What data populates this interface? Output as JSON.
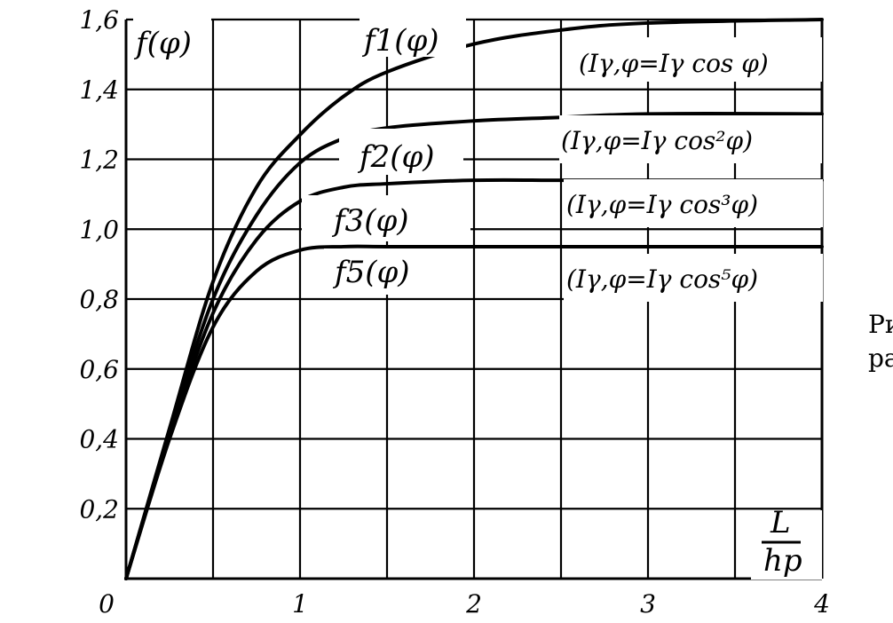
{
  "chart_data": {
    "type": "line",
    "xlabel": "L/h_p",
    "ylabel": "f(φ)",
    "xlim": [
      0,
      4
    ],
    "ylim": [
      0,
      1.6
    ],
    "grid": true,
    "x_ticks": [
      "0",
      "1",
      "2",
      "3",
      "4"
    ],
    "y_ticks": [
      "0,2",
      "0,4",
      "0,6",
      "0,8",
      "1,0",
      "1,2",
      "1,4",
      "1,6"
    ],
    "series": [
      {
        "name": "f1(φ)",
        "formula": "(Iγ,φ=Iγ cos φ)",
        "x": [
          0,
          0.25,
          0.5,
          0.75,
          1.0,
          1.25,
          1.5,
          2.0,
          2.5,
          3.0,
          4.0
        ],
        "values": [
          0,
          0.43,
          0.85,
          1.12,
          1.27,
          1.38,
          1.45,
          1.53,
          1.57,
          1.59,
          1.6
        ]
      },
      {
        "name": "f2(φ)",
        "formula": "(Iγ,φ=Iγ cos²φ)",
        "x": [
          0,
          0.25,
          0.5,
          0.75,
          1.0,
          1.25,
          1.5,
          2.0,
          2.5,
          3.0,
          4.0
        ],
        "values": [
          0,
          0.42,
          0.8,
          1.04,
          1.19,
          1.26,
          1.29,
          1.31,
          1.32,
          1.33,
          1.33
        ]
      },
      {
        "name": "f3(φ)",
        "formula": "(Iγ,φ=Iγ cos³φ)",
        "x": [
          0,
          0.25,
          0.5,
          0.75,
          1.0,
          1.25,
          1.5,
          2.0,
          2.5,
          3.0,
          4.0
        ],
        "values": [
          0,
          0.41,
          0.76,
          0.97,
          1.08,
          1.12,
          1.13,
          1.14,
          1.14,
          1.14,
          1.14
        ]
      },
      {
        "name": "f5(φ)",
        "formula": "(Iγ,φ=Iγ cos⁵φ)",
        "x": [
          0,
          0.25,
          0.5,
          0.75,
          1.0,
          1.25,
          1.5,
          2.0,
          2.5,
          3.0,
          4.0
        ],
        "values": [
          0,
          0.4,
          0.72,
          0.88,
          0.94,
          0.95,
          0.95,
          0.95,
          0.95,
          0.95,
          0.95
        ]
      }
    ]
  },
  "labels": {
    "ylabel": "f(φ)",
    "xlabel_num": "L",
    "xlabel_den": "hp",
    "f1": "f1(φ)",
    "f2": "f2(φ)",
    "f3": "f3(φ)",
    "f5": "f5(φ)",
    "formula1": "(Iγ,φ=Iγ cos φ)",
    "formula2": "(Iγ,φ=Iγ cos²φ)",
    "formula3": "(Iγ,φ=Iγ cos³φ)",
    "formula5": "(Iγ,φ=Iγ cos⁵φ)",
    "caption_line1": "Ри",
    "caption_line2": "ра"
  }
}
